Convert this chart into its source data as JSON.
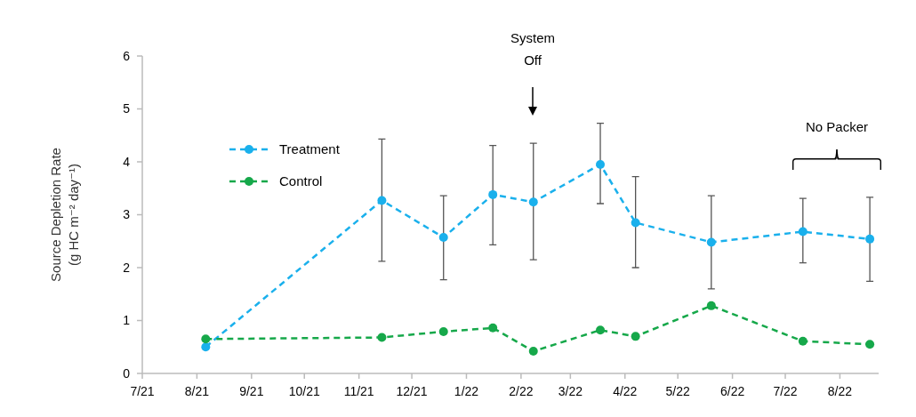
{
  "chart_data": {
    "type": "line",
    "ylabel": "Source Depletion Rate\n(g HC m⁻² day⁻¹)",
    "x": [
      "2021-08-06",
      "2021-11-14",
      "2021-12-19",
      "2022-01-16",
      "2022-02-08",
      "2022-03-18",
      "2022-04-07",
      "2022-05-20",
      "2022-07-11",
      "2022-08-18"
    ],
    "series": [
      {
        "name": "Treatment",
        "color": "#1ab0ec",
        "values": [
          0.5,
          3.27,
          2.57,
          3.38,
          3.24,
          3.95,
          2.85,
          2.48,
          2.68,
          2.54
        ],
        "errors": [
          null,
          [
            2.12,
            4.43
          ],
          [
            1.77,
            3.36
          ],
          [
            2.43,
            4.31
          ],
          [
            2.15,
            4.35
          ],
          [
            3.21,
            4.73
          ],
          [
            2.0,
            3.72
          ],
          [
            1.6,
            3.36
          ],
          [
            2.09,
            3.31
          ],
          [
            1.74,
            3.33
          ]
        ]
      },
      {
        "name": "Control",
        "color": "#16a84a",
        "values": [
          0.65,
          0.68,
          0.79,
          0.86,
          0.42,
          0.82,
          0.7,
          1.28,
          0.61,
          0.55
        ]
      }
    ],
    "xlim": [
      "2021-07-01",
      "2022-08-23"
    ],
    "xticks": [
      {
        "value": "2021-07",
        "label": "7/21"
      },
      {
        "value": "2021-08",
        "label": "8/21"
      },
      {
        "value": "2021-09",
        "label": "9/21"
      },
      {
        "value": "2021-10",
        "label": "10/21"
      },
      {
        "value": "2021-11",
        "label": "11/21"
      },
      {
        "value": "2021-12",
        "label": "12/21"
      },
      {
        "value": "2022-01",
        "label": "1/22"
      },
      {
        "value": "2022-02",
        "label": "2/22"
      },
      {
        "value": "2022-03",
        "label": "3/22"
      },
      {
        "value": "2022-04",
        "label": "4/22"
      },
      {
        "value": "2022-05",
        "label": "5/22"
      },
      {
        "value": "2022-06",
        "label": "6/22"
      },
      {
        "value": "2022-07",
        "label": "7/22"
      },
      {
        "value": "2022-08",
        "label": "8/22"
      }
    ],
    "ylim": [
      0,
      6
    ],
    "yticks": [
      0,
      1,
      2,
      3,
      4,
      5,
      6
    ],
    "annotations": [
      "System Off",
      "No Packer"
    ],
    "legend": "top left",
    "marker": "circle",
    "line_style": "dashed",
    "grid": false
  }
}
